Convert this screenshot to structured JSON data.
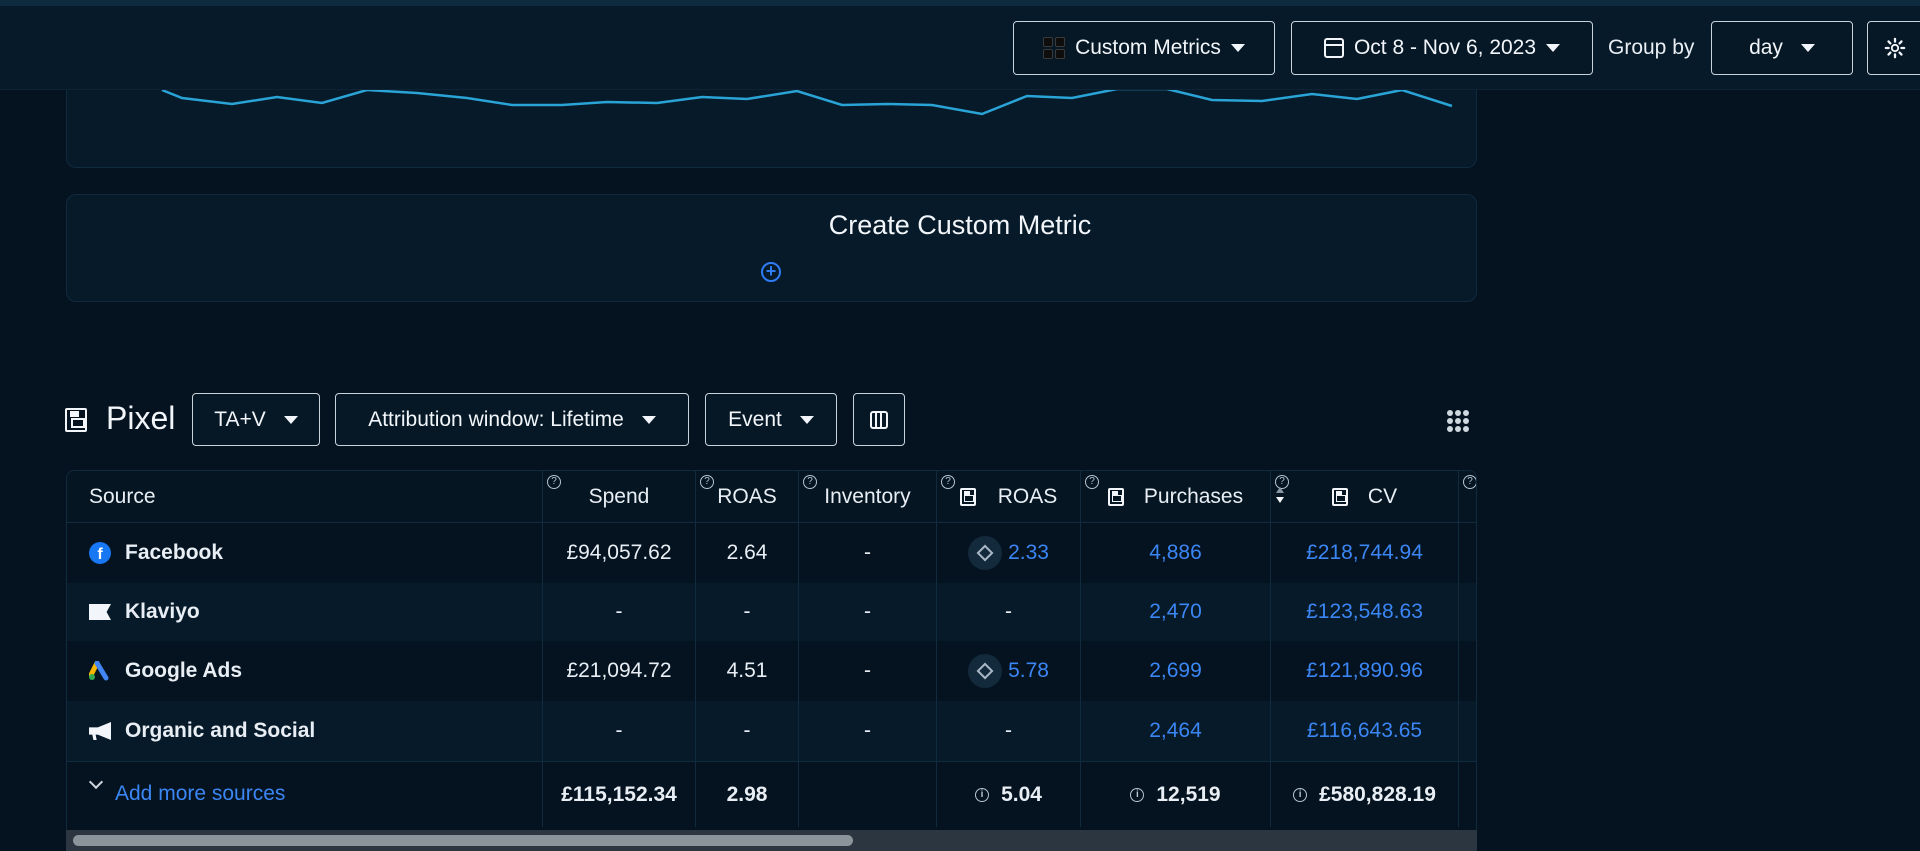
{
  "colors": {
    "accent_blue": "#3b86f4",
    "background": "#04131f",
    "chart_line": "#2aa3d6"
  },
  "toolbar": {
    "custom_metrics_label": "Custom Metrics",
    "date_range_label": "Oct 8 - Nov 6, 2023",
    "group_by_label": "Group by",
    "group_by_value": "day",
    "settings_icon": "gear-icon"
  },
  "custom_metric": {
    "title": "Create Custom Metric",
    "add_icon": "plus-circle-icon"
  },
  "pixel": {
    "title": "Pixel",
    "model_label": "TA+V",
    "attribution_label": "Attribution window: Lifetime",
    "event_label": "Event",
    "columns_icon": "columns-icon",
    "more_icon": "grid-dots-icon"
  },
  "table": {
    "headers": [
      "Source",
      "Spend",
      "ROAS",
      "Inventory",
      "ROAS",
      "Purchases",
      "CV"
    ],
    "rows": [
      {
        "source": "Facebook",
        "icon": "facebook-icon",
        "spend": "£94,057.62",
        "roas": "2.64",
        "inventory": "-",
        "pixel_roas": "2.33",
        "purchases": "4,886",
        "cv": "£218,744.94"
      },
      {
        "source": "Klaviyo",
        "icon": "flag-icon",
        "spend": "-",
        "roas": "-",
        "inventory": "-",
        "pixel_roas": "-",
        "purchases": "2,470",
        "cv": "£123,548.63"
      },
      {
        "source": "Google Ads",
        "icon": "google-ads-icon",
        "spend": "£21,094.72",
        "roas": "4.51",
        "inventory": "-",
        "pixel_roas": "5.78",
        "purchases": "2,699",
        "cv": "£121,890.96"
      },
      {
        "source": "Organic and Social",
        "icon": "megaphone-icon",
        "spend": "-",
        "roas": "-",
        "inventory": "-",
        "pixel_roas": "-",
        "purchases": "2,464",
        "cv": "£116,643.65"
      }
    ],
    "totals": {
      "add_sources_label": "Add more sources",
      "spend": "£115,152.34",
      "roas": "2.98",
      "pixel_roas": "5.04",
      "purchases": "12,519",
      "cv": "£580,828.19"
    }
  }
}
